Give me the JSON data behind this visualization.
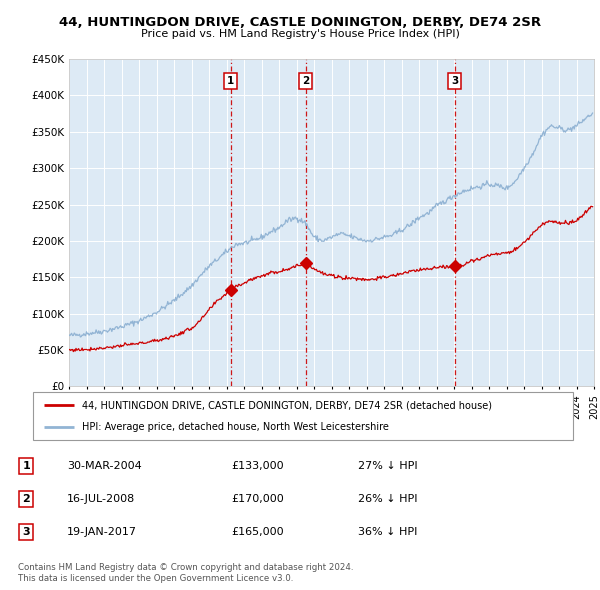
{
  "title1": "44, HUNTINGDON DRIVE, CASTLE DONINGTON, DERBY, DE74 2SR",
  "title2": "Price paid vs. HM Land Registry's House Price Index (HPI)",
  "legend_line1": "44, HUNTINGDON DRIVE, CASTLE DONINGTON, DERBY, DE74 2SR (detached house)",
  "legend_line2": "HPI: Average price, detached house, North West Leicestershire",
  "footnote": "Contains HM Land Registry data © Crown copyright and database right 2024.\nThis data is licensed under the Open Government Licence v3.0.",
  "sale_dates_year": [
    2004.25,
    2008.54,
    2017.05
  ],
  "sale_prices": [
    133000,
    170000,
    165000
  ],
  "sale_labels": [
    "1",
    "2",
    "3"
  ],
  "sale_info": [
    {
      "label": "1",
      "date": "30-MAR-2004",
      "price": "£133,000",
      "hpi": "27% ↓ HPI"
    },
    {
      "label": "2",
      "date": "16-JUL-2008",
      "price": "£170,000",
      "hpi": "26% ↓ HPI"
    },
    {
      "label": "3",
      "date": "19-JAN-2017",
      "price": "£165,000",
      "hpi": "36% ↓ HPI"
    }
  ],
  "hpi_color": "#92b4d4",
  "sale_color": "#cc0000",
  "vline_color": "#cc0000",
  "plot_bg": "#ddeaf5",
  "grid_color": "#ffffff",
  "ylim": [
    0,
    450000
  ],
  "xlim_start": 1995,
  "xlim_end": 2025,
  "yticks": [
    0,
    50000,
    100000,
    150000,
    200000,
    250000,
    300000,
    350000,
    400000,
    450000
  ],
  "ytick_labels": [
    "£0",
    "£50K",
    "£100K",
    "£150K",
    "£200K",
    "£250K",
    "£300K",
    "£350K",
    "£400K",
    "£450K"
  ],
  "xticks": [
    1995,
    1996,
    1997,
    1998,
    1999,
    2000,
    2001,
    2002,
    2003,
    2004,
    2005,
    2006,
    2007,
    2008,
    2009,
    2010,
    2011,
    2012,
    2013,
    2014,
    2015,
    2016,
    2017,
    2018,
    2019,
    2020,
    2021,
    2022,
    2023,
    2024,
    2025
  ]
}
